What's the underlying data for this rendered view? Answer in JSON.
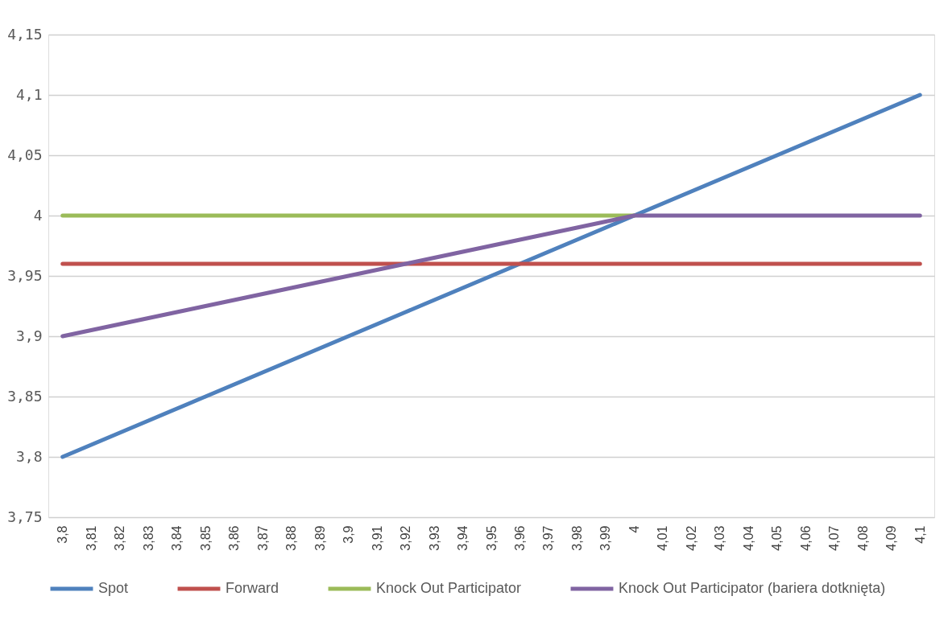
{
  "chart_data": {
    "type": "line",
    "categories": [
      "3,8",
      "3,81",
      "3,82",
      "3,83",
      "3,84",
      "3,85",
      "3,86",
      "3,87",
      "3,88",
      "3,89",
      "3,9",
      "3,91",
      "3,92",
      "3,93",
      "3,94",
      "3,95",
      "3,96",
      "3,97",
      "3,98",
      "3,99",
      "4",
      "4,01",
      "4,02",
      "4,03",
      "4,04",
      "4,05",
      "4,06",
      "4,07",
      "4,08",
      "4,09",
      "4,1"
    ],
    "series": [
      {
        "name": "Spot",
        "color": "#4f81bd",
        "values": [
          3.8,
          3.81,
          3.82,
          3.83,
          3.84,
          3.85,
          3.86,
          3.87,
          3.88,
          3.89,
          3.9,
          3.91,
          3.92,
          3.93,
          3.94,
          3.95,
          3.96,
          3.97,
          3.98,
          3.99,
          4.0,
          4.01,
          4.02,
          4.03,
          4.04,
          4.05,
          4.06,
          4.07,
          4.08,
          4.09,
          4.1
        ]
      },
      {
        "name": "Forward",
        "color": "#c0504d",
        "values": [
          3.96,
          3.96,
          3.96,
          3.96,
          3.96,
          3.96,
          3.96,
          3.96,
          3.96,
          3.96,
          3.96,
          3.96,
          3.96,
          3.96,
          3.96,
          3.96,
          3.96,
          3.96,
          3.96,
          3.96,
          3.96,
          3.96,
          3.96,
          3.96,
          3.96,
          3.96,
          3.96,
          3.96,
          3.96,
          3.96,
          3.96
        ]
      },
      {
        "name": "Knock Out Participator",
        "color": "#9bbb59",
        "values": [
          4.0,
          4.0,
          4.0,
          4.0,
          4.0,
          4.0,
          4.0,
          4.0,
          4.0,
          4.0,
          4.0,
          4.0,
          4.0,
          4.0,
          4.0,
          4.0,
          4.0,
          4.0,
          4.0,
          4.0,
          4.0,
          null,
          null,
          null,
          null,
          null,
          null,
          null,
          null,
          null,
          null
        ]
      },
      {
        "name": "Knock Out Participator (bariera dotknięta)",
        "color": "#8064a2",
        "values": [
          3.9,
          3.905,
          3.91,
          3.915,
          3.92,
          3.925,
          3.93,
          3.935,
          3.94,
          3.945,
          3.95,
          3.955,
          3.96,
          3.965,
          3.97,
          3.975,
          3.98,
          3.985,
          3.99,
          3.995,
          4.0,
          4.0,
          4.0,
          4.0,
          4.0,
          4.0,
          4.0,
          4.0,
          4.0,
          4.0,
          4.0
        ]
      }
    ],
    "ylim": [
      3.75,
      4.15
    ],
    "yticks": [
      {
        "value": 3.75,
        "label": "3,75"
      },
      {
        "value": 3.8,
        "label": "3,8"
      },
      {
        "value": 3.85,
        "label": "3,85"
      },
      {
        "value": 3.9,
        "label": "3,9"
      },
      {
        "value": 3.95,
        "label": "3,95"
      },
      {
        "value": 4.0,
        "label": "4"
      },
      {
        "value": 4.05,
        "label": "4,05"
      },
      {
        "value": 4.1,
        "label": "4,1"
      },
      {
        "value": 4.15,
        "label": "4,15"
      }
    ],
    "grid": "y",
    "legend": "bottom",
    "marker": "none",
    "line_style": "solid"
  }
}
